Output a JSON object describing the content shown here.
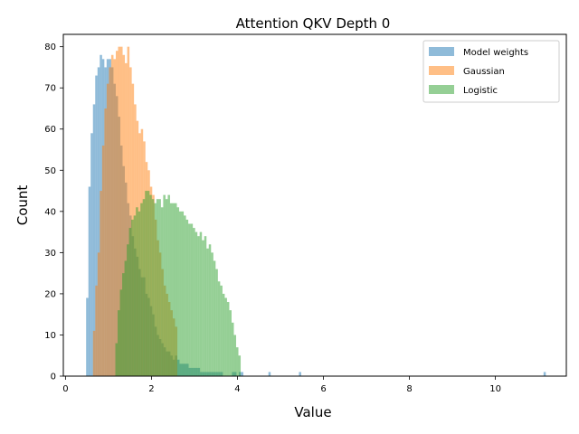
{
  "chart_data": {
    "type": "histogram",
    "title": "Attention QKV Depth 0",
    "xlabel": "Value",
    "ylabel": "Count",
    "xlim": [
      -0.05,
      11.65
    ],
    "ylim": [
      0,
      83
    ],
    "xticks": [
      0,
      2,
      4,
      6,
      8,
      10
    ],
    "yticks": [
      0,
      10,
      20,
      30,
      40,
      50,
      60,
      70,
      80
    ],
    "legend_position": "top-right",
    "bin_width": 0.053,
    "series": [
      {
        "name": "Model weights",
        "color": "#1f77b4",
        "opacity": 0.5,
        "start": 0.48,
        "counts": [
          19,
          46,
          59,
          66,
          73,
          75,
          78,
          77,
          75,
          77,
          77,
          75,
          71,
          68,
          63,
          56,
          51,
          47,
          42,
          39,
          34,
          31,
          29,
          26,
          24,
          24,
          20,
          19,
          17,
          15,
          12,
          10,
          9,
          8,
          7,
          6,
          6,
          5,
          4,
          5,
          4,
          3,
          3,
          3,
          3,
          2,
          2,
          2,
          2,
          2,
          1,
          1,
          1,
          1,
          1,
          1,
          1,
          1,
          1,
          1,
          0,
          0,
          0,
          0,
          1,
          1,
          0,
          1,
          1
        ],
        "outliers": [
          {
            "x": 4.72,
            "count": 1
          },
          {
            "x": 5.43,
            "count": 1
          },
          {
            "x": 11.12,
            "count": 1
          }
        ]
      },
      {
        "name": "Gaussian",
        "color": "#ff7f0e",
        "opacity": 0.5,
        "start": 0.64,
        "counts": [
          11,
          22,
          30,
          45,
          56,
          65,
          71,
          75,
          78,
          77,
          79,
          80,
          80,
          78,
          76,
          80,
          75,
          71,
          66,
          62,
          59,
          60,
          57,
          52,
          50,
          46,
          44,
          38,
          33,
          30,
          26,
          22,
          20,
          18,
          16,
          14,
          12
        ]
      },
      {
        "name": "Logistic",
        "color": "#2ca02c",
        "opacity": 0.5,
        "start": 1.16,
        "counts": [
          8,
          16,
          21,
          25,
          28,
          32,
          36,
          38,
          39,
          41,
          40,
          42,
          43,
          45,
          45,
          44,
          43,
          42,
          43,
          43,
          41,
          44,
          43,
          44,
          42,
          42,
          42,
          41,
          40,
          40,
          39,
          38,
          37,
          37,
          36,
          35,
          34,
          35,
          33,
          34,
          31,
          32,
          30,
          28,
          26,
          23,
          22,
          20,
          19,
          18,
          16,
          13,
          10,
          7,
          5
        ]
      }
    ]
  }
}
